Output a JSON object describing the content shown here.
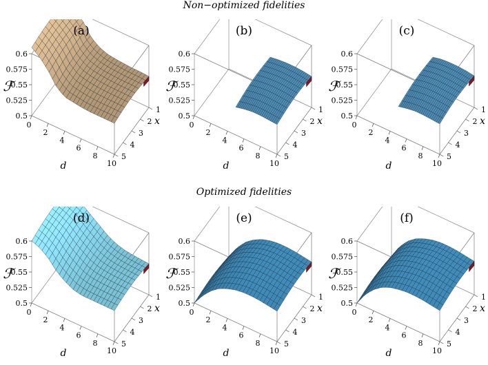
{
  "titles": {
    "top": "Non−optimized fidelities",
    "bottom": "Optimized fidelities"
  },
  "axis_labels": {
    "z": "ℱ",
    "d": "d",
    "x": "x"
  },
  "chart_data": [
    {
      "type": "surface",
      "label": "(a)",
      "xlabel": "d",
      "ylabel": "x",
      "zlabel": "ℱ",
      "d_range": [
        0,
        10
      ],
      "x_range": [
        1,
        5
      ],
      "zlim": [
        0.5,
        0.6
      ],
      "d_ticks": [
        "0",
        "2",
        "4",
        "6",
        "8",
        "10"
      ],
      "x_ticks": [
        "1",
        "2",
        "3",
        "4",
        "5"
      ],
      "z_ticks": [
        "0.5",
        "0.525",
        "0.55",
        "0.575",
        "0.6"
      ],
      "d_values": [
        0,
        1,
        2,
        3,
        4,
        5,
        6,
        7,
        8,
        9,
        10
      ],
      "fidelity_at_x1": [
        0.61,
        0.6,
        0.59,
        0.57,
        0.56,
        0.555,
        0.553,
        0.552,
        0.551,
        0.551,
        0.55
      ],
      "fidelity_at_x5": [
        0.61,
        0.6,
        0.585,
        0.565,
        0.555,
        0.553,
        0.551,
        0.55,
        0.55,
        0.55,
        0.55
      ],
      "surface_color": "#b59a78"
    },
    {
      "type": "surface",
      "label": "(b)",
      "xlabel": "d",
      "ylabel": "x",
      "zlabel": "ℱ",
      "d_range": [
        0,
        10
      ],
      "x_range": [
        1,
        5
      ],
      "zlim": [
        0.5,
        0.6
      ],
      "d_ticks": [
        "0",
        "2",
        "4",
        "6",
        "8",
        "10"
      ],
      "x_ticks": [
        "1",
        "2",
        "3",
        "4",
        "5"
      ],
      "z_ticks": [
        "0.5",
        "0.525",
        "0.55",
        "0.575",
        "0.6"
      ],
      "defined_from_d": 5,
      "d_values": [
        5,
        6,
        7,
        8,
        9,
        10
      ],
      "fidelity_at_x1": [
        0.55,
        0.552,
        0.553,
        0.553,
        0.552,
        0.55
      ],
      "fidelity_at_x5": [
        0.545,
        0.548,
        0.55,
        0.55,
        0.549,
        0.548
      ],
      "surface_color": "#4f8fb8"
    },
    {
      "type": "surface",
      "label": "(c)",
      "xlabel": "d",
      "ylabel": "x",
      "zlabel": "ℱ",
      "d_range": [
        0,
        10
      ],
      "x_range": [
        1,
        5
      ],
      "zlim": [
        0.5,
        0.6
      ],
      "d_ticks": [
        "0",
        "2",
        "4",
        "6",
        "8",
        "10"
      ],
      "x_ticks": [
        "1",
        "2",
        "3",
        "4",
        "5"
      ],
      "z_ticks": [
        "0.5",
        "0.525",
        "0.55",
        "0.575",
        "0.6"
      ],
      "defined_from_d": 5,
      "d_values": [
        5,
        6,
        7,
        8,
        9,
        10
      ],
      "fidelity_at_x1": [
        0.55,
        0.553,
        0.554,
        0.554,
        0.553,
        0.551
      ],
      "fidelity_at_x5": [
        0.546,
        0.549,
        0.551,
        0.551,
        0.55,
        0.549
      ],
      "surface_color": "#4f8fb8"
    },
    {
      "type": "surface",
      "label": "(d)",
      "xlabel": "d",
      "ylabel": "x",
      "zlabel": "ℱ",
      "d_range": [
        0,
        10
      ],
      "x_range": [
        1,
        5
      ],
      "zlim": [
        0.5,
        0.6
      ],
      "d_ticks": [
        "0",
        "2",
        "4",
        "6",
        "8",
        "10"
      ],
      "x_ticks": [
        "1",
        "2",
        "3",
        "4",
        "5"
      ],
      "z_ticks": [
        "0.5",
        "0.525",
        "0.55",
        "0.575",
        "0.6"
      ],
      "d_values": [
        0,
        1,
        2,
        3,
        4,
        5,
        6,
        7,
        8,
        9,
        10
      ],
      "fidelity_at_x1": [
        0.605,
        0.6,
        0.595,
        0.585,
        0.575,
        0.565,
        0.558,
        0.554,
        0.552,
        0.551,
        0.55
      ],
      "fidelity_at_x5": [
        0.6,
        0.595,
        0.585,
        0.57,
        0.56,
        0.553,
        0.55,
        0.55,
        0.55,
        0.55,
        0.55
      ],
      "surface_color": "#7cc4d8"
    },
    {
      "type": "surface",
      "label": "(e)",
      "xlabel": "d",
      "ylabel": "x",
      "zlabel": "ℱ",
      "d_range": [
        0,
        10
      ],
      "x_range": [
        1,
        5
      ],
      "zlim": [
        0.5,
        0.6
      ],
      "d_ticks": [
        "0",
        "2",
        "4",
        "6",
        "8",
        "10"
      ],
      "x_ticks": [
        "1",
        "2",
        "3",
        "4",
        "5"
      ],
      "z_ticks": [
        "0.5",
        "0.525",
        "0.55",
        "0.575",
        "0.6"
      ],
      "d_values": [
        0,
        1,
        2,
        3,
        4,
        5,
        6,
        7,
        8,
        9,
        10
      ],
      "fidelity_at_x1": [
        0.5,
        0.52,
        0.535,
        0.545,
        0.552,
        0.556,
        0.558,
        0.558,
        0.557,
        0.555,
        0.553
      ],
      "fidelity_at_x5": [
        0.5,
        0.518,
        0.532,
        0.542,
        0.548,
        0.552,
        0.554,
        0.554,
        0.553,
        0.551,
        0.549
      ],
      "surface_color": "#3f8ab8"
    },
    {
      "type": "surface",
      "label": "(f)",
      "xlabel": "d",
      "ylabel": "x",
      "zlabel": "ℱ",
      "d_range": [
        0,
        10
      ],
      "x_range": [
        1,
        5
      ],
      "zlim": [
        0.5,
        0.6
      ],
      "d_ticks": [
        "0",
        "2",
        "4",
        "6",
        "8",
        "10"
      ],
      "x_ticks": [
        "1",
        "2",
        "3",
        "4",
        "5"
      ],
      "z_ticks": [
        "0.5",
        "0.525",
        "0.55",
        "0.575",
        "0.6"
      ],
      "d_values": [
        0,
        1,
        2,
        3,
        4,
        5,
        6,
        7,
        8,
        9,
        10
      ],
      "fidelity_at_x1": [
        0.5,
        0.522,
        0.537,
        0.547,
        0.553,
        0.557,
        0.559,
        0.559,
        0.558,
        0.556,
        0.554
      ],
      "fidelity_at_x5": [
        0.5,
        0.52,
        0.534,
        0.544,
        0.55,
        0.553,
        0.555,
        0.555,
        0.554,
        0.552,
        0.55
      ],
      "surface_color": "#3f8ab8"
    }
  ]
}
